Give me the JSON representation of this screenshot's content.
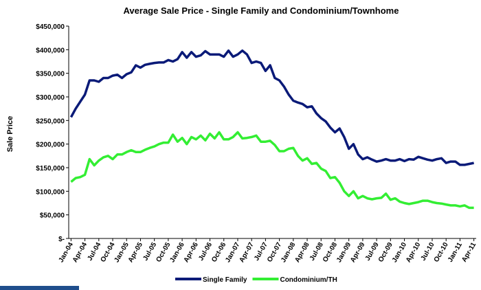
{
  "chart_data": {
    "type": "line",
    "title": "Average Sale Price - Single Family and Condominium/Townhome",
    "y_label": "Sale Price",
    "categories": [
      "Jan-04",
      null,
      null,
      "Apr-04",
      null,
      null,
      "Jul-04",
      null,
      null,
      "Oct-04",
      null,
      null,
      "Jan-05",
      null,
      null,
      "Apr-05",
      null,
      null,
      "Jul-05",
      null,
      null,
      "Oct-05",
      null,
      null,
      "Jan-06",
      null,
      null,
      "Apr-06",
      null,
      null,
      "Jul-06",
      null,
      null,
      "Oct-06",
      null,
      null,
      "Jan-07",
      null,
      null,
      "Apr-07",
      null,
      null,
      "Jul-07",
      null,
      null,
      "Oct-07",
      null,
      null,
      "Jan-08",
      null,
      null,
      "Apr-08",
      null,
      null,
      "Jul-08",
      null,
      null,
      "Oct-08",
      null,
      null,
      "Jan-09",
      null,
      null,
      "Apr-09",
      null,
      null,
      "Jul-09",
      null,
      null,
      "Oct-09",
      null,
      null,
      "Jan-10",
      null,
      null,
      "Apr-10",
      null,
      null,
      "Jul-10",
      null,
      null,
      "Oct-10",
      null,
      null,
      "Jan-11",
      null,
      null,
      "Apr-11"
    ],
    "series": [
      {
        "name": "Single Family",
        "color": "#0a1a78",
        "values": [
          257000,
          275000,
          290000,
          305000,
          335000,
          335000,
          332000,
          340000,
          340000,
          345000,
          347000,
          340000,
          348000,
          352000,
          367000,
          362000,
          368000,
          370000,
          372000,
          373000,
          373000,
          378000,
          375000,
          380000,
          395000,
          383000,
          395000,
          385000,
          388000,
          397000,
          390000,
          390000,
          390000,
          385000,
          398000,
          385000,
          390000,
          398000,
          390000,
          372000,
          375000,
          372000,
          355000,
          367000,
          340000,
          335000,
          322000,
          305000,
          292000,
          288000,
          285000,
          278000,
          280000,
          265000,
          255000,
          248000,
          235000,
          225000,
          233000,
          215000,
          190000,
          200000,
          178000,
          168000,
          172000,
          167000,
          163000,
          165000,
          168000,
          165000,
          165000,
          168000,
          164000,
          168000,
          167000,
          173000,
          170000,
          167000,
          165000,
          168000,
          170000,
          160000,
          163000,
          163000,
          156000,
          156000,
          158000,
          160000
        ]
      },
      {
        "name": "Condominium/TH",
        "color": "#33ee33",
        "values": [
          120000,
          128000,
          130000,
          135000,
          168000,
          155000,
          165000,
          172000,
          175000,
          168000,
          178000,
          178000,
          183000,
          187000,
          183000,
          183000,
          188000,
          192000,
          195000,
          200000,
          203000,
          203000,
          220000,
          205000,
          213000,
          200000,
          215000,
          210000,
          218000,
          208000,
          222000,
          212000,
          225000,
          210000,
          210000,
          215000,
          225000,
          212000,
          213000,
          215000,
          218000,
          205000,
          205000,
          207000,
          198000,
          185000,
          185000,
          190000,
          192000,
          175000,
          165000,
          170000,
          158000,
          160000,
          148000,
          143000,
          128000,
          130000,
          118000,
          100000,
          90000,
          100000,
          85000,
          90000,
          85000,
          83000,
          85000,
          86000,
          95000,
          82000,
          85000,
          78000,
          75000,
          73000,
          75000,
          77000,
          80000,
          80000,
          77000,
          75000,
          74000,
          72000,
          70000,
          70000,
          68000,
          70000,
          65000,
          65000
        ]
      }
    ],
    "ylim": [
      0,
      450000
    ],
    "yticks": [
      {
        "value": 0,
        "label": "$-"
      },
      {
        "value": 50000,
        "label": "$50,000"
      },
      {
        "value": 100000,
        "label": "$100,000"
      },
      {
        "value": 150000,
        "label": "$150,000"
      },
      {
        "value": 200000,
        "label": "$200,000"
      },
      {
        "value": 250000,
        "label": "$250,000"
      },
      {
        "value": 300000,
        "label": "$300,000"
      },
      {
        "value": 350000,
        "label": "$350,000"
      },
      {
        "value": 400000,
        "label": "$400,000"
      },
      {
        "value": 450000,
        "label": "$450,000"
      }
    ],
    "grid": false
  }
}
